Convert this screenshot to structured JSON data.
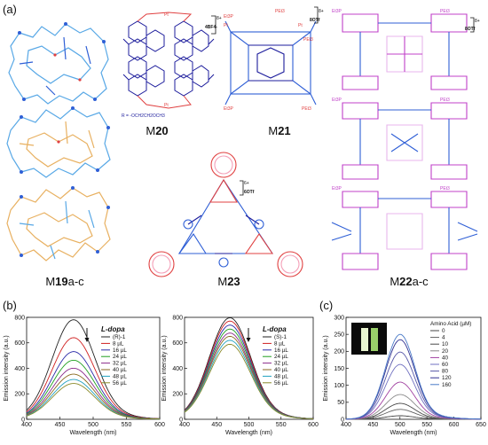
{
  "panels": {
    "a": {
      "letter": "(a)"
    },
    "b": {
      "letter": "(b)"
    },
    "c": {
      "letter": "(c)"
    }
  },
  "compounds": {
    "m19": {
      "prefix": "M",
      "num": "19",
      "suffix": "a-c"
    },
    "m20": {
      "prefix": "M",
      "num": "20",
      "suffix": ""
    },
    "m21": {
      "prefix": "M",
      "num": "21",
      "suffix": ""
    },
    "m22": {
      "prefix": "M",
      "num": "22",
      "suffix": "a-c"
    },
    "m23": {
      "prefix": "M",
      "num": "23",
      "suffix": ""
    }
  },
  "structure_labels": {
    "m20_charge": "8+",
    "m20_counter": "4BF4-",
    "m20_r": "R = -OCH2CH2OCH3",
    "m21_charge": "8+",
    "m21_counter": "8OTf",
    "m22_charge": "8+",
    "m22_counter": "8OTf",
    "m23_charge": "6+",
    "m23_counter": "6OTf",
    "pet3": "PEt3",
    "et3p": "Et3P",
    "pt": "Pt"
  },
  "colors": {
    "blue": "#2f5fd6",
    "navy": "#1c1c9c",
    "skyblue": "#58a8e6",
    "orange": "#e8b060",
    "magenta": "#c040c8",
    "red": "#e04040",
    "pink": "#f4a0b8",
    "lavender": "#e8b6ec"
  },
  "chart_data": [
    {
      "type": "line",
      "panel": "b-left",
      "xlabel": "Wavelength (nm)",
      "ylabel": "Emission intensity (a.u.)",
      "xlim": [
        400,
        600
      ],
      "ylim": [
        0,
        800
      ],
      "xticks": [
        "400",
        "450",
        "500",
        "550",
        "600"
      ],
      "yticks": [
        "0",
        "200",
        "400",
        "600",
        "800"
      ],
      "legend_title": "L-dopa",
      "peak_x": 470,
      "width": 45,
      "series": [
        {
          "name": "(R)-1",
          "peak": 750,
          "color": "#222222"
        },
        {
          "name": "8 µL",
          "peak": 615,
          "color": "#d02020"
        },
        {
          "name": "16 µL",
          "peak": 510,
          "color": "#2a2aa8"
        },
        {
          "name": "24 µL",
          "peak": 445,
          "color": "#20a020"
        },
        {
          "name": "32 µL",
          "peak": 385,
          "color": "#8a2a8a"
        },
        {
          "name": "40 µL",
          "peak": 340,
          "color": "#8a6a20"
        },
        {
          "name": "48 µL",
          "peak": 300,
          "color": "#20a0c0"
        },
        {
          "name": "56 µL",
          "peak": 270,
          "color": "#8a8a2a"
        }
      ]
    },
    {
      "type": "line",
      "panel": "b-right",
      "xlabel": "Wavelength (nm)",
      "ylabel": "Emission intensity (a.u.)",
      "xlim": [
        400,
        600
      ],
      "ylim": [
        0,
        800
      ],
      "xticks": [
        "400",
        "450",
        "500",
        "550",
        "600"
      ],
      "yticks": [
        "0",
        "200",
        "400",
        "600",
        "800"
      ],
      "legend_title": "L-dopa",
      "peak_x": 470,
      "width": 45,
      "series": [
        {
          "name": "(S)-1",
          "peak": 765,
          "color": "#222222"
        },
        {
          "name": "8 µL",
          "peak": 740,
          "color": "#d02020"
        },
        {
          "name": "16 µL",
          "peak": 710,
          "color": "#2a2aa8"
        },
        {
          "name": "24 µL",
          "peak": 680,
          "color": "#20a020"
        },
        {
          "name": "32 µL",
          "peak": 650,
          "color": "#8a2a8a"
        },
        {
          "name": "40 µL",
          "peak": 625,
          "color": "#8a6a20"
        },
        {
          "name": "48 µL",
          "peak": 595,
          "color": "#20a0c0"
        },
        {
          "name": "56 µL",
          "peak": 565,
          "color": "#8a8a2a"
        }
      ]
    },
    {
      "type": "line",
      "panel": "c",
      "xlabel": "Wavelength (nm)",
      "ylabel": "Emission intensity (a.u.)",
      "xlim": [
        400,
        650
      ],
      "ylim": [
        0,
        300
      ],
      "xticks": [
        "400",
        "450",
        "500",
        "550",
        "600",
        "650"
      ],
      "yticks": [
        "0",
        "50",
        "100",
        "150",
        "200",
        "250",
        "300"
      ],
      "legend_title": "Amino Acid (µM)",
      "peak_x": 500,
      "width": 38,
      "series": [
        {
          "name": "0",
          "peak": 10,
          "color": "#444444"
        },
        {
          "name": "4",
          "peak": 28,
          "color": "#606060"
        },
        {
          "name": "10",
          "peak": 45,
          "color": "#4a4a4a"
        },
        {
          "name": "20",
          "peak": 70,
          "color": "#8a8a8a"
        },
        {
          "name": "40",
          "peak": 105,
          "color": "#a040a0"
        },
        {
          "name": "60",
          "peak": 155,
          "color": "#7070c0"
        },
        {
          "name": "80",
          "peak": 190,
          "color": "#5858a8"
        },
        {
          "name": "120",
          "peak": 225,
          "color": "#303090"
        },
        {
          "name": "160",
          "peak": 240,
          "color": "#4a7ac8"
        }
      ]
    }
  ]
}
